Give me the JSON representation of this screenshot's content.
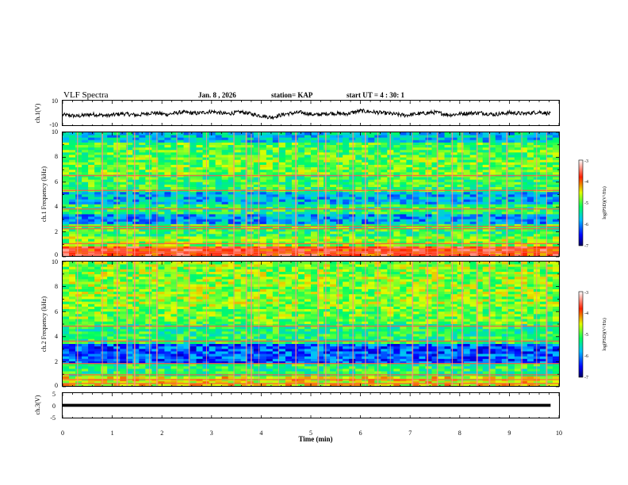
{
  "header": {
    "title": "VLF Spectra",
    "date": "Jan. 8 , 2026",
    "station": "station= KAP",
    "start_ut": "start UT = 4 : 30: 1"
  },
  "chart_data": [
    {
      "type": "line",
      "panel": "ch1-waveform",
      "ylabel": "ch.1(V)",
      "ylim": [
        -10,
        10
      ],
      "yticks": [
        "10",
        "-10"
      ],
      "x_range_min": [
        0,
        9.83
      ],
      "trend_points": [
        [
          0.0,
          -1.5
        ],
        [
          0.3,
          -2.6
        ],
        [
          0.6,
          -1.1
        ],
        [
          0.9,
          -2.2
        ],
        [
          1.2,
          -0.6
        ],
        [
          1.5,
          -1.8
        ],
        [
          1.8,
          0.2
        ],
        [
          2.1,
          -1.2
        ],
        [
          2.4,
          0.6
        ],
        [
          2.7,
          -0.4
        ],
        [
          3.0,
          1.2
        ],
        [
          3.3,
          -0.8
        ],
        [
          3.6,
          0.8
        ],
        [
          3.9,
          -1.6
        ],
        [
          4.2,
          -3.6
        ],
        [
          4.5,
          -0.8
        ],
        [
          4.8,
          0.4
        ],
        [
          5.1,
          -1.6
        ],
        [
          5.4,
          -0.2
        ],
        [
          5.7,
          -0.9
        ],
        [
          6.0,
          1.7
        ],
        [
          6.3,
          0.6
        ],
        [
          6.6,
          -0.6
        ],
        [
          6.9,
          -1.9
        ],
        [
          7.2,
          -0.6
        ],
        [
          7.5,
          0.5
        ],
        [
          7.8,
          -1.6
        ],
        [
          8.1,
          -0.4
        ],
        [
          8.4,
          0.1
        ],
        [
          8.7,
          -1.2
        ],
        [
          9.0,
          0.2
        ],
        [
          9.3,
          -0.6
        ],
        [
          9.6,
          0.8
        ],
        [
          9.83,
          -0.8
        ]
      ]
    },
    {
      "type": "heatmap",
      "panel": "ch1-spectrogram",
      "ylabel": "ch.1 Frequency (kHz)",
      "ylim": [
        0,
        10
      ],
      "yticks": [
        "0",
        "2",
        "4",
        "6",
        "8",
        "10"
      ],
      "colorbar": {
        "label": "log(PSD)(V²/Hz)",
        "range": [
          -7,
          -3
        ],
        "ticks": [
          "-3",
          "-4",
          "-5",
          "-6",
          "-7"
        ]
      },
      "band_levels_kHz": [
        [
          0.0,
          0.8,
          -3.8
        ],
        [
          0.8,
          1.6,
          -4.8
        ],
        [
          1.6,
          2.6,
          -5.1
        ],
        [
          2.6,
          3.4,
          -5.9
        ],
        [
          3.4,
          4.2,
          -5.2
        ],
        [
          4.2,
          5.2,
          -5.8
        ],
        [
          5.2,
          6.6,
          -5.1
        ],
        [
          6.6,
          8.0,
          -4.9
        ],
        [
          8.0,
          9.2,
          -5.0
        ],
        [
          9.2,
          10.0,
          -5.7
        ]
      ],
      "line_features_kHz": [
        0.3,
        0.6,
        1.0,
        2.2,
        2.4,
        3.8,
        5.3,
        6.5
      ],
      "sferic_times_min": [
        0.3,
        0.8,
        1.1,
        1.3,
        1.45,
        1.75,
        1.9,
        2.3,
        2.55,
        2.9,
        3.45,
        3.7,
        3.8,
        3.95,
        4.35,
        4.7,
        5.15,
        5.3,
        5.55,
        5.85,
        6.1,
        6.35,
        6.6,
        7.05,
        7.35,
        7.55,
        7.85,
        8.05,
        8.35,
        8.6,
        8.95,
        9.25,
        9.55,
        9.75
      ]
    },
    {
      "type": "heatmap",
      "panel": "ch2-spectrogram",
      "ylabel": "ch.2 Frequency (kHz)",
      "ylim": [
        0,
        10
      ],
      "yticks": [
        "0",
        "2",
        "4",
        "6",
        "8",
        "10"
      ],
      "colorbar": {
        "label": "log(PSD)(V²/Hz)",
        "range": [
          -7,
          -3
        ],
        "ticks": [
          "-3",
          "-4",
          "-5",
          "-6",
          "-7"
        ]
      },
      "band_levels_kHz": [
        [
          0.0,
          0.8,
          -4.5
        ],
        [
          0.8,
          1.8,
          -5.2
        ],
        [
          1.8,
          3.4,
          -6.2
        ],
        [
          3.4,
          5.0,
          -5.2
        ],
        [
          5.0,
          6.4,
          -4.9
        ],
        [
          6.4,
          8.0,
          -4.8
        ],
        [
          8.0,
          10.0,
          -4.8
        ]
      ],
      "line_features_kHz": [
        0.2,
        0.5,
        0.9,
        1.8,
        3.6,
        4.8
      ],
      "sferic_times_min": [
        0.3,
        0.8,
        1.1,
        1.3,
        1.45,
        1.75,
        1.9,
        2.3,
        2.55,
        2.9,
        3.45,
        3.7,
        3.8,
        3.95,
        4.35,
        4.7,
        5.15,
        5.3,
        5.55,
        5.85,
        6.1,
        6.35,
        6.6,
        7.05,
        7.35,
        7.55,
        7.85,
        8.05,
        8.35,
        8.6,
        8.95,
        9.25,
        9.55,
        9.75
      ]
    },
    {
      "type": "line",
      "panel": "ch3-waveform",
      "ylabel": "ch.3(V)",
      "ylim": [
        -5,
        5
      ],
      "yticks": [
        "5",
        "0",
        "-5"
      ],
      "x_range_min": [
        0,
        9.83
      ],
      "level_V": 0,
      "thickness_V": 1.2
    }
  ],
  "xaxis": {
    "label": "Time (min)",
    "range": [
      0,
      10
    ],
    "ticks": [
      "0",
      "1",
      "2",
      "3",
      "4",
      "5",
      "6",
      "7",
      "8",
      "9",
      "10"
    ]
  },
  "colors": {
    "axis": "#000000",
    "trace": "#000000"
  }
}
